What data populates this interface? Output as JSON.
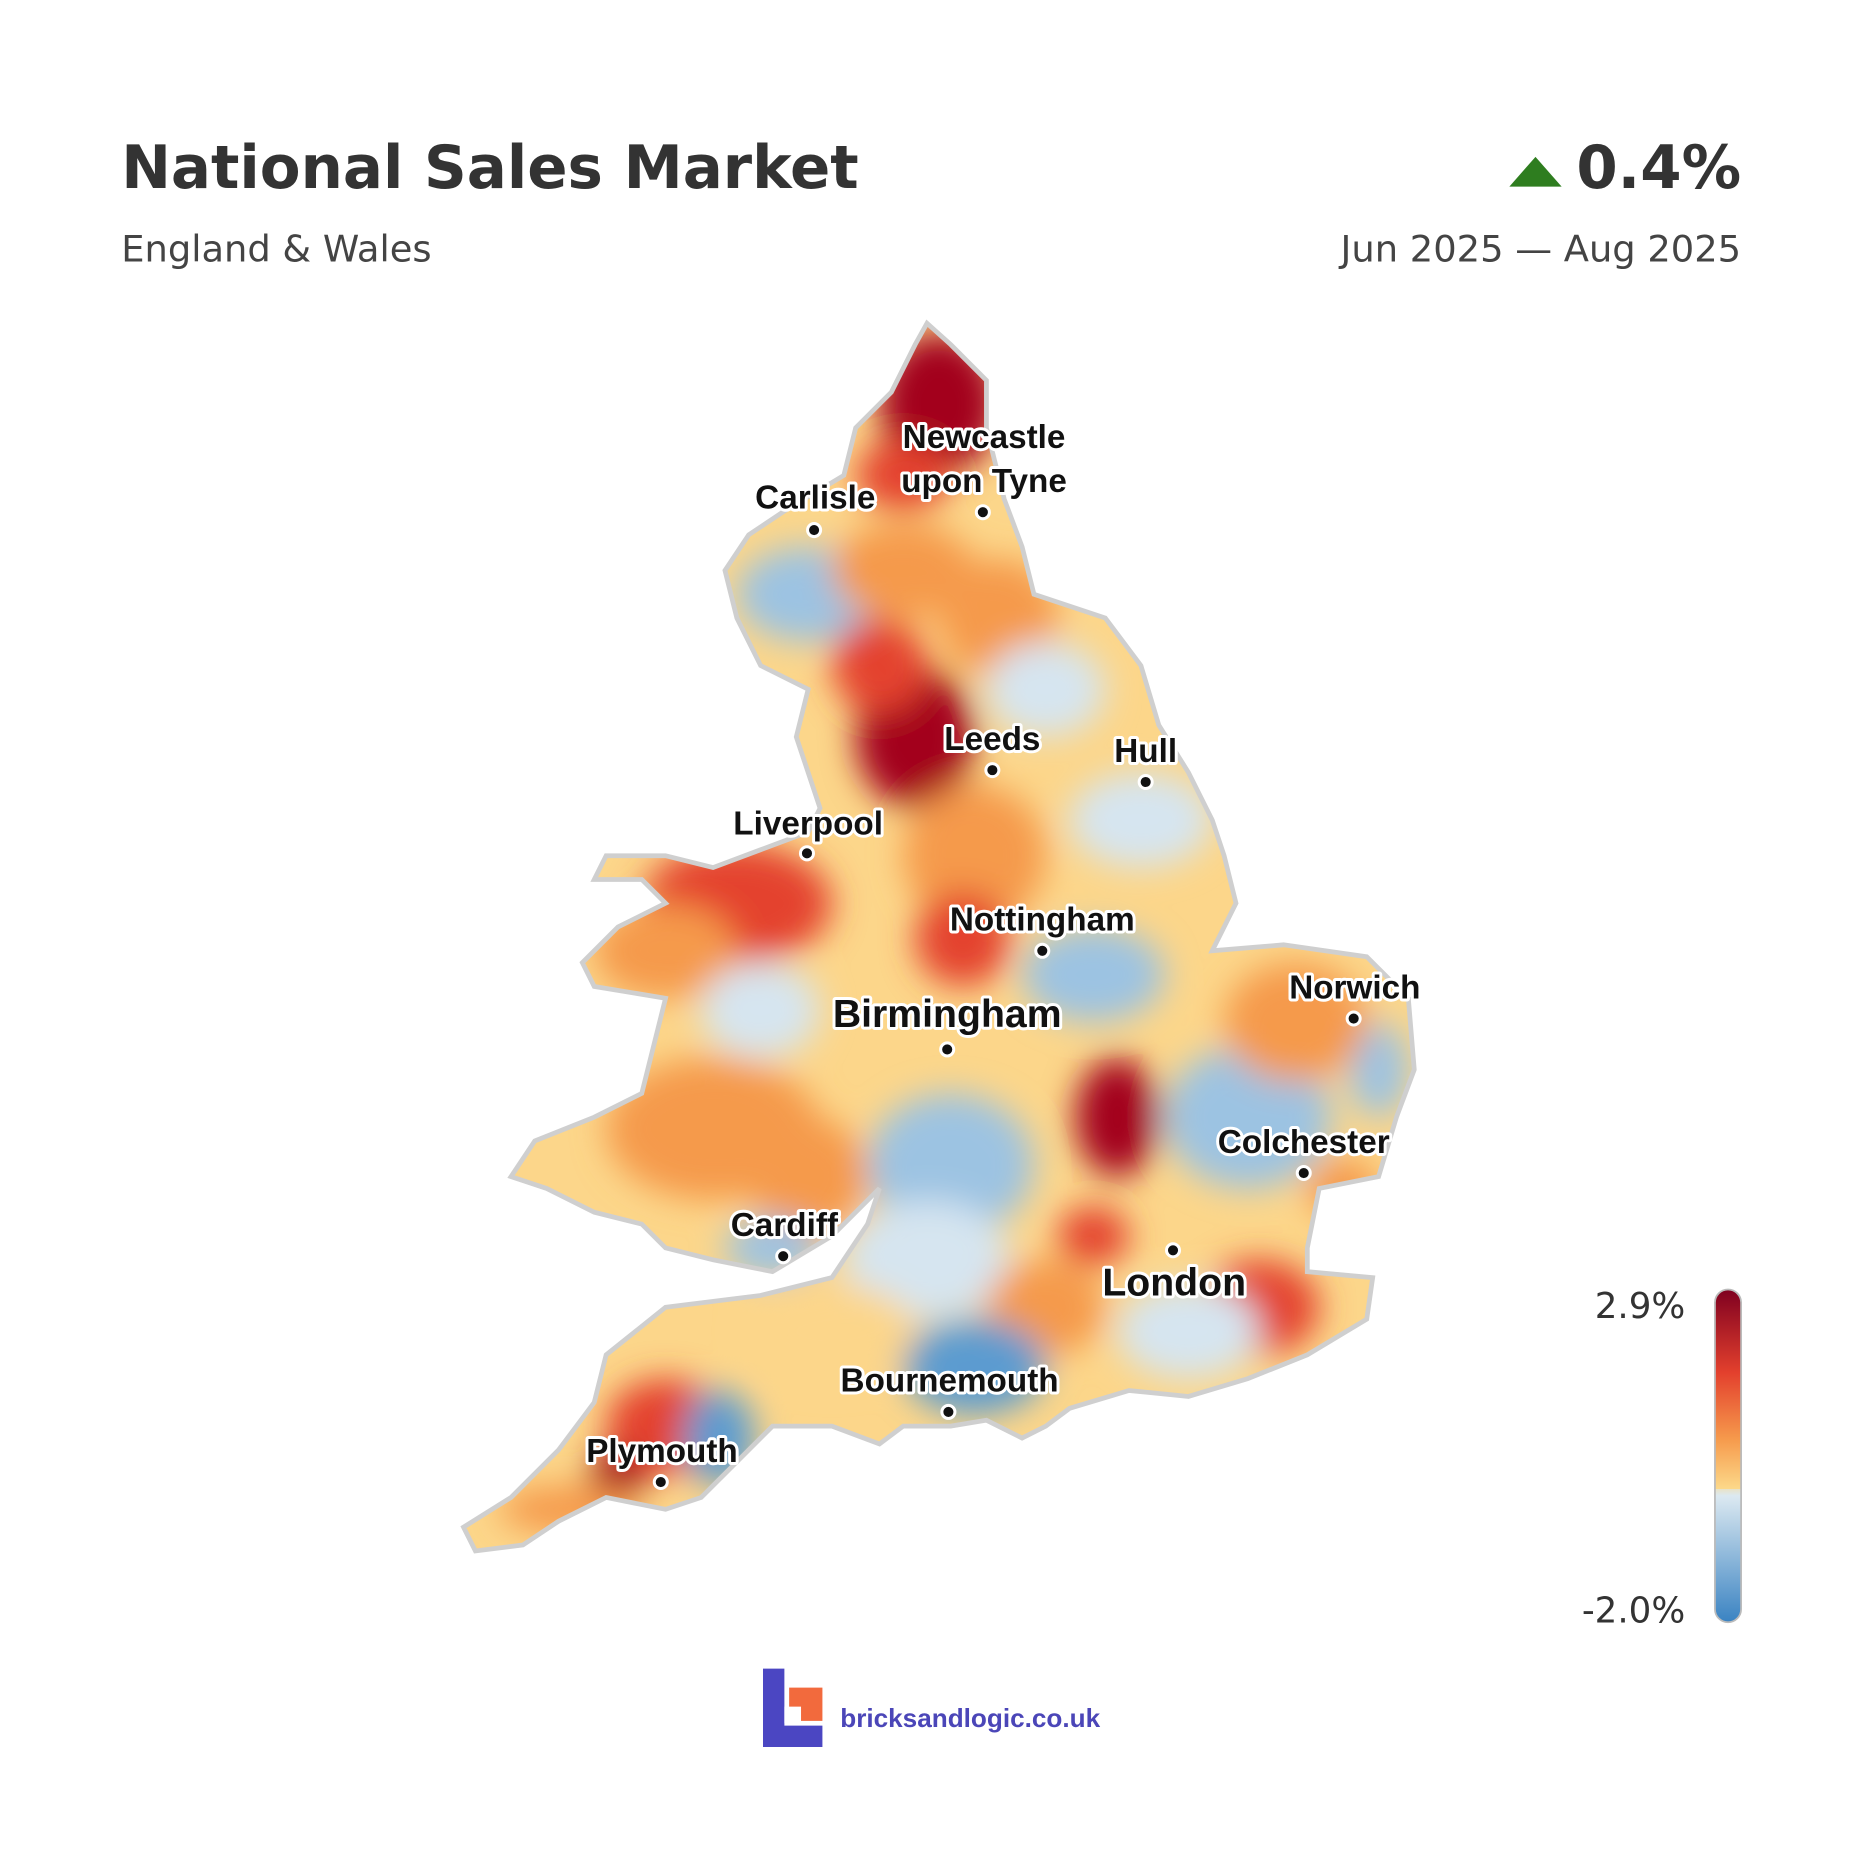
{
  "header": {
    "title": "National Sales Market",
    "subtitle": "England & Wales",
    "change": "0.4%",
    "period": "Jun 2025 — Aug 2025"
  },
  "cities": {
    "newcastle": [
      "Newcastle",
      "upon Tyne"
    ],
    "carlisle": "Carlisle",
    "leeds": "Leeds",
    "hull": "Hull",
    "liverpool": "Liverpool",
    "nottingham": "Nottingham",
    "birmingham": "Birmingham",
    "norwich": "Norwich",
    "colchester": "Colchester",
    "cardiff": "Cardiff",
    "london": "London",
    "bournemouth": "Bournemouth",
    "plymouth": "Plymouth"
  },
  "legend": {
    "max": "2.9%",
    "min": "-2.0%"
  },
  "footer": {
    "brand": "bricksandlogic.co.uk"
  }
}
